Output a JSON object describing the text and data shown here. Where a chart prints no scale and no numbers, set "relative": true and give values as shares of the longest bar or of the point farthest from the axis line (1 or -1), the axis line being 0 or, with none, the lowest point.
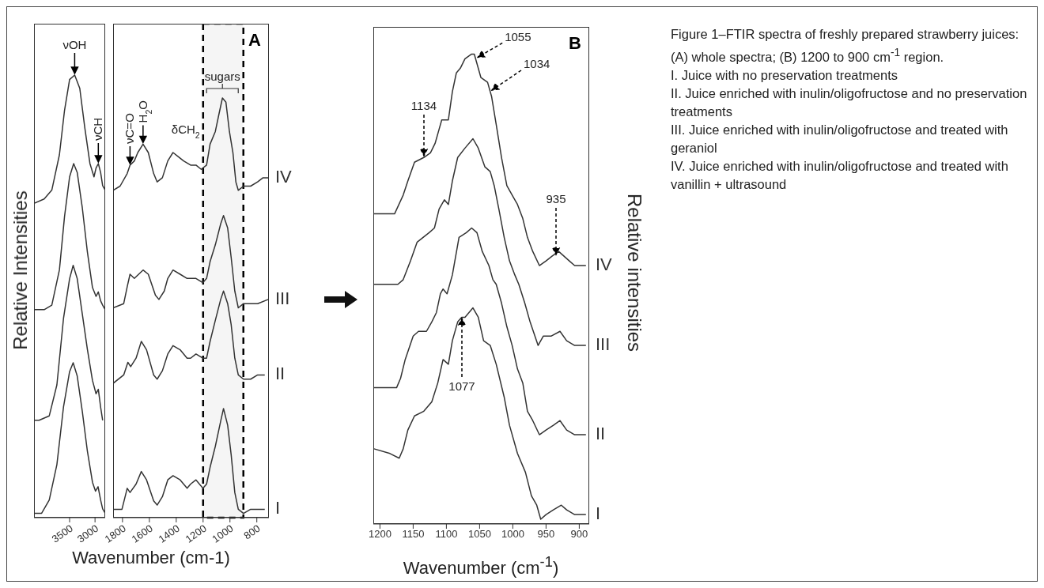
{
  "chart_data": [
    {
      "type": "line",
      "ylabel": "Relative Intensities",
      "relative": true,
      "xlim": [
        4200,
        2800
      ],
      "xticks": [
        3500,
        3000
      ],
      "series": [
        {
          "color": "#333333",
          "x": [
            4200,
            4050,
            3900,
            3750,
            3620,
            3500,
            3430,
            3350,
            3250,
            3150,
            3050,
            2990,
            2940,
            2890,
            2850,
            2800
          ],
          "values": [
            0.01,
            0.01,
            0.04,
            0.12,
            0.25,
            0.33,
            0.35,
            0.32,
            0.24,
            0.15,
            0.08,
            0.06,
            0.07,
            0.04,
            0.02,
            0.01
          ]
        },
        {
          "color": "#333333",
          "x": [
            4200,
            4100,
            3900,
            3750,
            3620,
            3500,
            3430,
            3350,
            3250,
            3150,
            3050,
            2980,
            2935,
            2890,
            2850
          ],
          "values": [
            0.22,
            0.22,
            0.23,
            0.3,
            0.45,
            0.54,
            0.57,
            0.54,
            0.46,
            0.38,
            0.31,
            0.28,
            0.29,
            0.25,
            0.22
          ]
        },
        {
          "color": "#333333",
          "x": [
            4200,
            4000,
            3850,
            3700,
            3600,
            3500,
            3420,
            3350,
            3250,
            3150,
            3050,
            2980,
            2935,
            2890,
            2850,
            2800
          ],
          "values": [
            0.47,
            0.47,
            0.48,
            0.56,
            0.68,
            0.77,
            0.8,
            0.78,
            0.7,
            0.6,
            0.52,
            0.5,
            0.51,
            0.49,
            0.48,
            0.47
          ]
        },
        {
          "color": "#333333",
          "x": [
            4200,
            4000,
            3850,
            3700,
            3600,
            3500,
            3400,
            3300,
            3200,
            3100,
            3020,
            2980,
            2935,
            2890,
            2850,
            2800
          ],
          "values": [
            0.71,
            0.72,
            0.74,
            0.82,
            0.92,
            0.99,
            1.0,
            0.97,
            0.88,
            0.8,
            0.77,
            0.79,
            0.8,
            0.78,
            0.75,
            0.74
          ]
        }
      ],
      "annotations": [
        {
          "text": "νOH",
          "x": 3400,
          "y": 1.0
        },
        {
          "text": "νCH",
          "x": 2935,
          "y": 0.8
        }
      ]
    },
    {
      "type": "line",
      "xlabel": "Wavenumber (cm-1)",
      "relative": true,
      "xlim": [
        1870,
        710
      ],
      "xticks": [
        1800,
        1600,
        1400,
        1200,
        1000,
        800
      ],
      "series": [
        {
          "name": "I",
          "color": "#333333",
          "x": [
            1870,
            1804,
            1765,
            1744,
            1699,
            1660,
            1621,
            1568,
            1542,
            1503,
            1463,
            1424,
            1371,
            1319,
            1293,
            1253,
            1201,
            1174,
            1148,
            1109,
            1069,
            1048,
            1017,
            991,
            964,
            938,
            899,
            846,
            794,
            741
          ],
          "values": [
            0.02,
            0.02,
            0.07,
            0.06,
            0.08,
            0.11,
            0.09,
            0.04,
            0.03,
            0.05,
            0.09,
            0.1,
            0.09,
            0.07,
            0.08,
            0.09,
            0.07,
            0.08,
            0.12,
            0.17,
            0.23,
            0.26,
            0.22,
            0.15,
            0.06,
            0.02,
            0.01,
            0.02,
            0.02,
            0.02
          ]
        },
        {
          "name": "II",
          "color": "#333333",
          "x": [
            1870,
            1791,
            1760,
            1739,
            1699,
            1660,
            1621,
            1568,
            1542,
            1503,
            1463,
            1424,
            1371,
            1319,
            1293,
            1253,
            1201,
            1174,
            1148,
            1109,
            1069,
            1048,
            1017,
            991,
            964,
            938,
            899,
            846,
            794,
            741
          ],
          "values": [
            0.32,
            0.34,
            0.37,
            0.36,
            0.38,
            0.42,
            0.4,
            0.34,
            0.33,
            0.35,
            0.39,
            0.41,
            0.4,
            0.38,
            0.38,
            0.39,
            0.38,
            0.38,
            0.42,
            0.47,
            0.52,
            0.54,
            0.51,
            0.46,
            0.38,
            0.34,
            0.33,
            0.33,
            0.34,
            0.34
          ]
        },
        {
          "name": "III",
          "color": "#333333",
          "x": [
            1870,
            1791,
            1765,
            1744,
            1712,
            1647,
            1608,
            1555,
            1529,
            1489,
            1463,
            1424,
            1371,
            1319,
            1293,
            1253,
            1201,
            1174,
            1148,
            1109,
            1069,
            1048,
            1017,
            991,
            964,
            938,
            899,
            846,
            794,
            715
          ],
          "values": [
            0.5,
            0.51,
            0.55,
            0.58,
            0.57,
            0.59,
            0.58,
            0.53,
            0.52,
            0.54,
            0.57,
            0.59,
            0.58,
            0.57,
            0.57,
            0.57,
            0.56,
            0.57,
            0.61,
            0.65,
            0.7,
            0.72,
            0.69,
            0.62,
            0.54,
            0.5,
            0.51,
            0.51,
            0.51,
            0.52
          ]
        },
        {
          "name": "IV",
          "color": "#333333",
          "x": [
            1870,
            1818,
            1765,
            1744,
            1712,
            1686,
            1647,
            1608,
            1568,
            1542,
            1503,
            1463,
            1424,
            1384,
            1345,
            1293,
            1253,
            1214,
            1174,
            1148,
            1109,
            1083,
            1056,
            1030,
            1004,
            978,
            956,
            938,
            899,
            846,
            794,
            754,
            715
          ],
          "values": [
            0.78,
            0.79,
            0.82,
            0.84,
            0.85,
            0.87,
            0.89,
            0.87,
            0.82,
            0.8,
            0.81,
            0.85,
            0.87,
            0.86,
            0.85,
            0.84,
            0.84,
            0.83,
            0.84,
            0.89,
            0.92,
            0.96,
            1.0,
            0.99,
            0.92,
            0.87,
            0.8,
            0.78,
            0.79,
            0.79,
            0.8,
            0.81,
            0.81
          ]
        }
      ],
      "bands": [
        {
          "axis": "x",
          "from": 1200,
          "to": 900,
          "color": "#000000"
        }
      ],
      "annotations": [
        {
          "text": "νC=O",
          "x": 1744,
          "y": 0.84
        },
        {
          "text": "H$_{2}$O",
          "x": 1647,
          "y": 0.89
        },
        {
          "text": "δCH$_{2}$",
          "x": 1424,
          "y": 0.87
        },
        {
          "text": "sugars",
          "x": 1056,
          "y": 1.0
        },
        "A"
      ]
    },
    {
      "type": "line",
      "xlabel": "Wavenumber (cm$^{-1}$)",
      "ylabel": "Relative intensities",
      "relative": true,
      "xlim": [
        1210,
        885
      ],
      "xticks": [
        1200,
        1150,
        1100,
        1050,
        1000,
        950,
        900
      ],
      "series": [
        {
          "name": "I",
          "color": "#333333",
          "x": [
            1209,
            1185,
            1171,
            1165,
            1158,
            1148,
            1134,
            1122,
            1113,
            1105,
            1097,
            1091,
            1083,
            1077,
            1072,
            1060,
            1052,
            1044,
            1034,
            1025,
            1013,
            1005,
            993,
            981,
            972,
            964,
            958,
            950,
            939,
            927,
            919,
            907,
            890
          ],
          "values": [
            0.16,
            0.15,
            0.14,
            0.16,
            0.2,
            0.23,
            0.24,
            0.26,
            0.3,
            0.35,
            0.34,
            0.39,
            0.43,
            0.44,
            0.44,
            0.46,
            0.44,
            0.39,
            0.38,
            0.34,
            0.27,
            0.21,
            0.15,
            0.11,
            0.06,
            0.04,
            0.01,
            0.02,
            0.03,
            0.04,
            0.03,
            0.02,
            0.02
          ]
        },
        {
          "name": "II",
          "color": "#333333",
          "x": [
            1209,
            1193,
            1175,
            1169,
            1162,
            1150,
            1142,
            1130,
            1122,
            1115,
            1109,
            1105,
            1099,
            1091,
            1081,
            1070,
            1062,
            1054,
            1046,
            1036,
            1030,
            1025,
            1017,
            1009,
            1001,
            993,
            985,
            978,
            970,
            960,
            950,
            939,
            929,
            919,
            907,
            890
          ],
          "values": [
            0.29,
            0.29,
            0.29,
            0.31,
            0.35,
            0.4,
            0.41,
            0.41,
            0.43,
            0.45,
            0.49,
            0.5,
            0.49,
            0.53,
            0.61,
            0.62,
            0.63,
            0.62,
            0.58,
            0.55,
            0.52,
            0.51,
            0.47,
            0.42,
            0.38,
            0.33,
            0.3,
            0.24,
            0.22,
            0.19,
            0.2,
            0.21,
            0.22,
            0.2,
            0.19,
            0.19
          ]
        },
        {
          "name": "III",
          "color": "#333333",
          "x": [
            1209,
            1193,
            1173,
            1165,
            1154,
            1144,
            1126,
            1118,
            1111,
            1103,
            1097,
            1091,
            1083,
            1072,
            1060,
            1052,
            1042,
            1034,
            1028,
            1021,
            1013,
            1005,
            997,
            991,
            982,
            974,
            962,
            954,
            942,
            929,
            919,
            907,
            890
          ],
          "values": [
            0.51,
            0.51,
            0.51,
            0.52,
            0.56,
            0.6,
            0.62,
            0.63,
            0.67,
            0.69,
            0.68,
            0.73,
            0.78,
            0.8,
            0.82,
            0.8,
            0.76,
            0.75,
            0.72,
            0.67,
            0.61,
            0.56,
            0.53,
            0.51,
            0.47,
            0.43,
            0.38,
            0.4,
            0.4,
            0.41,
            0.39,
            0.38,
            0.38
          ]
        },
        {
          "name": "IV",
          "color": "#333333",
          "x": [
            1209,
            1193,
            1178,
            1165,
            1158,
            1148,
            1134,
            1124,
            1117,
            1111,
            1107,
            1101,
            1097,
            1091,
            1085,
            1079,
            1072,
            1062,
            1058,
            1048,
            1038,
            1032,
            1025,
            1017,
            1009,
            1001,
            993,
            985,
            978,
            970,
            960,
            950,
            941,
            931,
            923,
            915,
            907,
            890
          ],
          "values": [
            0.66,
            0.66,
            0.66,
            0.7,
            0.73,
            0.77,
            0.78,
            0.79,
            0.81,
            0.84,
            0.86,
            0.86,
            0.86,
            0.92,
            0.96,
            0.97,
            0.99,
            1.0,
            1.0,
            0.95,
            0.94,
            0.91,
            0.85,
            0.78,
            0.72,
            0.7,
            0.68,
            0.65,
            0.61,
            0.58,
            0.55,
            0.56,
            0.57,
            0.58,
            0.57,
            0.56,
            0.55,
            0.55
          ]
        }
      ],
      "annotations": [
        "B",
        "1134",
        {
          "text": "1055",
          "x": 1055,
          "y": 0.99
        },
        "1034",
        "935",
        "1077"
      ]
    },
    {
      "type": "other",
      "annotations": [
        "Figure 1–FTIR spectra of freshly prepared strawberry juices: (A) whole spectra; (B) 1200 to 900 cm$^{-1}$ region.",
        "I. Juice with no preservation treatments",
        "II. Juice enriched with inulin/oligofructose and no preservation treatments",
        "III. Juice enriched with inulin/oligofructose and treated with geraniol",
        "IV. Juice enriched with inulin/oligofructose and treated with vanillin + ultrasound"
      ]
    }
  ]
}
